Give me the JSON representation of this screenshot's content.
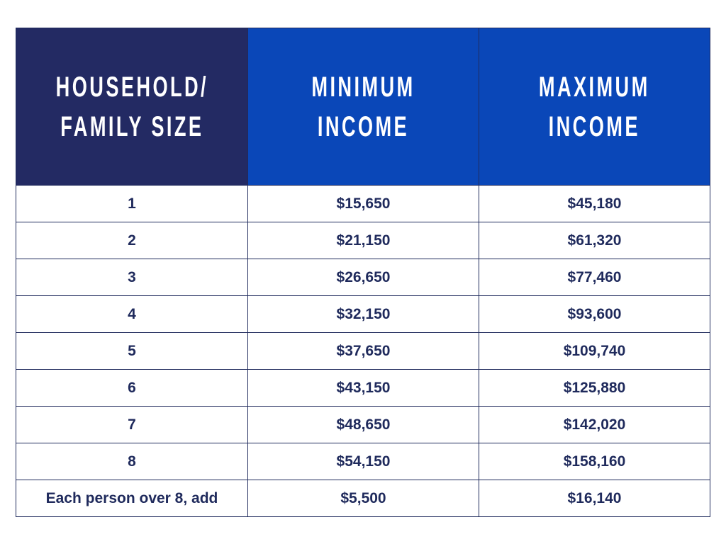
{
  "table": {
    "header": [
      "HOUSEHOLD/\nFAMILY SIZE",
      "MINIMUM\nINCOME",
      "MAXIMUM\nINCOME"
    ],
    "rows": [
      [
        "1",
        "$15,650",
        "$45,180"
      ],
      [
        "2",
        "$21,150",
        "$61,320"
      ],
      [
        "3",
        "$26,650",
        "$77,460"
      ],
      [
        "4",
        "$32,150",
        "$93,600"
      ],
      [
        "5",
        "$37,650",
        "$109,740"
      ],
      [
        "6",
        "$43,150",
        "$125,880"
      ],
      [
        "7",
        "$48,650",
        "$142,020"
      ],
      [
        "8",
        "$54,150",
        "$158,160"
      ],
      [
        "Each person over 8, add",
        "$5,500",
        "$16,140"
      ]
    ]
  }
}
